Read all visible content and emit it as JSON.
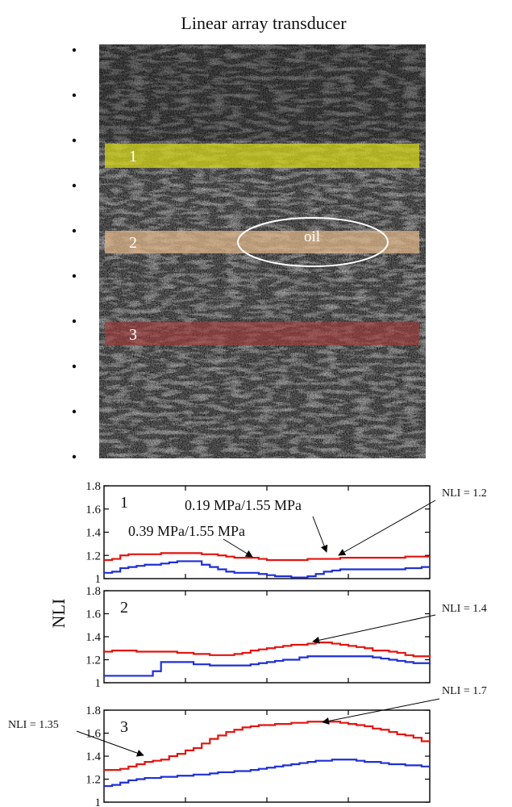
{
  "image": {
    "title": "Linear array transducer",
    "bands": [
      {
        "label": "1",
        "color": "#d4d41a"
      },
      {
        "label": "2",
        "color": "#e3b98a"
      },
      {
        "label": "3",
        "color": "#a43a3a"
      }
    ],
    "oil_label": "oil"
  },
  "colors": {
    "red": "#e3140f",
    "blue": "#1f2fd6"
  },
  "chart_data": [
    {
      "type": "line",
      "panel_label": "1",
      "ylabel": "",
      "ylim": [
        1,
        1.8
      ],
      "yticks": [
        "1",
        "1.2",
        "1.4",
        "1.6",
        "1.8"
      ],
      "x": [
        0,
        1,
        2,
        3,
        4,
        5,
        6,
        7,
        8,
        9,
        10,
        11,
        12,
        13,
        14,
        15,
        16,
        17,
        18,
        19,
        20,
        21,
        22,
        23,
        24,
        25,
        26,
        27,
        28,
        29,
        30,
        31,
        32,
        33,
        34,
        35,
        36,
        37,
        38,
        39,
        40
      ],
      "series": [
        {
          "name": "0.39 MPa/1.55 MPa",
          "color": "red",
          "values": [
            1.16,
            1.17,
            1.2,
            1.21,
            1.21,
            1.21,
            1.21,
            1.22,
            1.22,
            1.22,
            1.22,
            1.22,
            1.21,
            1.21,
            1.2,
            1.19,
            1.18,
            1.18,
            1.18,
            1.17,
            1.16,
            1.16,
            1.16,
            1.16,
            1.16,
            1.17,
            1.17,
            1.17,
            1.17,
            1.18,
            1.18,
            1.18,
            1.18,
            1.18,
            1.18,
            1.18,
            1.18,
            1.19,
            1.19,
            1.19,
            1.19
          ]
        },
        {
          "name": "0.19 MPa/1.55 MPa",
          "color": "blue",
          "values": [
            1.05,
            1.06,
            1.09,
            1.1,
            1.11,
            1.12,
            1.12,
            1.13,
            1.14,
            1.15,
            1.15,
            1.15,
            1.12,
            1.1,
            1.08,
            1.06,
            1.05,
            1.05,
            1.05,
            1.04,
            1.03,
            1.02,
            1.02,
            1.01,
            1.01,
            1.02,
            1.04,
            1.06,
            1.07,
            1.08,
            1.08,
            1.08,
            1.08,
            1.08,
            1.08,
            1.08,
            1.08,
            1.09,
            1.09,
            1.1,
            1.1
          ]
        }
      ],
      "annotations": [
        {
          "text": "0.19 MPa/1.55 MPa"
        },
        {
          "text": "0.39 MPa/1.55 MPa"
        },
        {
          "text": "NLI = 1.2"
        }
      ]
    },
    {
      "type": "line",
      "panel_label": "2",
      "ylabel": "NLI",
      "ylim": [
        1,
        1.8
      ],
      "yticks": [
        "1",
        "1.2",
        "1.4",
        "1.6",
        "1.8"
      ],
      "x": [
        0,
        1,
        2,
        3,
        4,
        5,
        6,
        7,
        8,
        9,
        10,
        11,
        12,
        13,
        14,
        15,
        16,
        17,
        18,
        19,
        20,
        21,
        22,
        23,
        24,
        25,
        26,
        27,
        28,
        29,
        30,
        31,
        32,
        33,
        34,
        35,
        36,
        37,
        38,
        39,
        40
      ],
      "series": [
        {
          "name": "",
          "color": "red",
          "values": [
            1.27,
            1.28,
            1.28,
            1.28,
            1.27,
            1.27,
            1.27,
            1.27,
            1.27,
            1.26,
            1.26,
            1.25,
            1.25,
            1.24,
            1.24,
            1.24,
            1.25,
            1.26,
            1.28,
            1.29,
            1.3,
            1.31,
            1.32,
            1.33,
            1.33,
            1.34,
            1.35,
            1.35,
            1.34,
            1.33,
            1.32,
            1.31,
            1.3,
            1.28,
            1.28,
            1.27,
            1.26,
            1.24,
            1.23,
            1.23,
            1.22
          ]
        },
        {
          "name": "",
          "color": "blue",
          "values": [
            1.06,
            1.06,
            1.06,
            1.06,
            1.06,
            1.06,
            1.1,
            1.18,
            1.18,
            1.18,
            1.18,
            1.16,
            1.16,
            1.15,
            1.15,
            1.15,
            1.15,
            1.15,
            1.16,
            1.17,
            1.18,
            1.19,
            1.2,
            1.2,
            1.22,
            1.23,
            1.23,
            1.23,
            1.23,
            1.23,
            1.23,
            1.23,
            1.23,
            1.22,
            1.21,
            1.2,
            1.19,
            1.18,
            1.17,
            1.17,
            1.16
          ]
        }
      ],
      "annotations": [
        {
          "text": "NLI = 1.4"
        }
      ]
    },
    {
      "type": "line",
      "panel_label": "3",
      "ylabel": "",
      "ylim": [
        1,
        1.8
      ],
      "yticks": [
        "1",
        "1.2",
        "1.4",
        "1.6",
        "1.8"
      ],
      "x": [
        0,
        1,
        2,
        3,
        4,
        5,
        6,
        7,
        8,
        9,
        10,
        11,
        12,
        13,
        14,
        15,
        16,
        17,
        18,
        19,
        20,
        21,
        22,
        23,
        24,
        25,
        26,
        27,
        28,
        29,
        30,
        31,
        32,
        33,
        34,
        35,
        36,
        37,
        38,
        39,
        40
      ],
      "series": [
        {
          "name": "",
          "color": "red",
          "values": [
            1.28,
            1.28,
            1.29,
            1.31,
            1.33,
            1.35,
            1.36,
            1.37,
            1.4,
            1.42,
            1.45,
            1.47,
            1.51,
            1.55,
            1.58,
            1.61,
            1.63,
            1.65,
            1.66,
            1.67,
            1.67,
            1.68,
            1.68,
            1.69,
            1.69,
            1.7,
            1.7,
            1.7,
            1.7,
            1.69,
            1.68,
            1.67,
            1.66,
            1.64,
            1.63,
            1.61,
            1.59,
            1.58,
            1.56,
            1.53,
            1.52
          ]
        },
        {
          "name": "",
          "color": "blue",
          "values": [
            1.14,
            1.15,
            1.17,
            1.19,
            1.2,
            1.21,
            1.21,
            1.22,
            1.22,
            1.23,
            1.23,
            1.24,
            1.24,
            1.25,
            1.26,
            1.26,
            1.27,
            1.27,
            1.28,
            1.29,
            1.3,
            1.31,
            1.32,
            1.33,
            1.34,
            1.35,
            1.36,
            1.36,
            1.37,
            1.37,
            1.37,
            1.36,
            1.35,
            1.35,
            1.34,
            1.33,
            1.33,
            1.32,
            1.32,
            1.31,
            1.31
          ]
        }
      ],
      "annotations": [
        {
          "text": "NLI = 1.7"
        },
        {
          "text": "NLI = 1.35"
        }
      ]
    }
  ]
}
